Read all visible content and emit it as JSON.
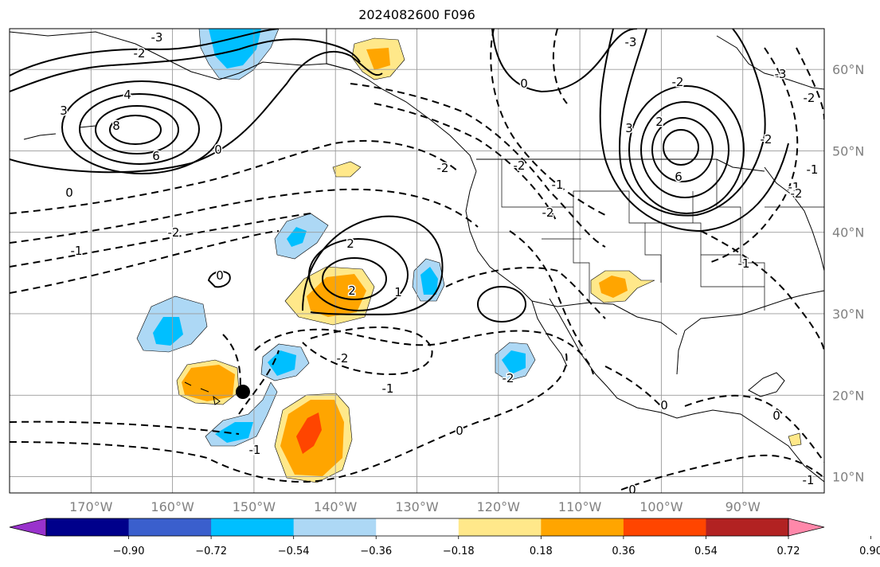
{
  "title": "2024082600 F096",
  "map": {
    "lon_range": [
      -180,
      -80
    ],
    "lat_range": [
      8,
      65
    ],
    "lat_labels": [
      "10°N",
      "20°N",
      "30°N",
      "40°N",
      "50°N",
      "60°N"
    ],
    "lon_labels": [
      "170°W",
      "160°W",
      "150°W",
      "140°W",
      "130°W",
      "120°W",
      "110°W",
      "100°W",
      "90°W"
    ]
  },
  "contour_labels": [
    "-3",
    "-2",
    "-1",
    "0",
    "-2",
    "-2",
    "-1",
    "-1",
    "-2",
    "-2",
    "0",
    "2",
    "2",
    "1",
    "3",
    "4",
    "6",
    "8",
    "6",
    "3",
    "2",
    "0",
    "0",
    "-2",
    "-2",
    "-1",
    "0",
    "-3",
    "-2",
    "-1",
    "0",
    "-2",
    "-1",
    "0",
    "-3",
    "-2",
    "-1",
    "-2",
    "0",
    "-1"
  ],
  "colorbar": {
    "tick_labels": [
      "−0.90",
      "−0.72",
      "−0.54",
      "−0.36",
      "−0.18",
      "0.18",
      "0.36",
      "0.54",
      "0.72",
      "0.90"
    ],
    "colors": [
      "#9932cc",
      "#00008b",
      "#3a5fcd",
      "#00bfff",
      "#add8f5",
      "#ffffff",
      "#ffe88a",
      "#ffa500",
      "#ff4500",
      "#b22222",
      "#ff88aa"
    ]
  }
}
